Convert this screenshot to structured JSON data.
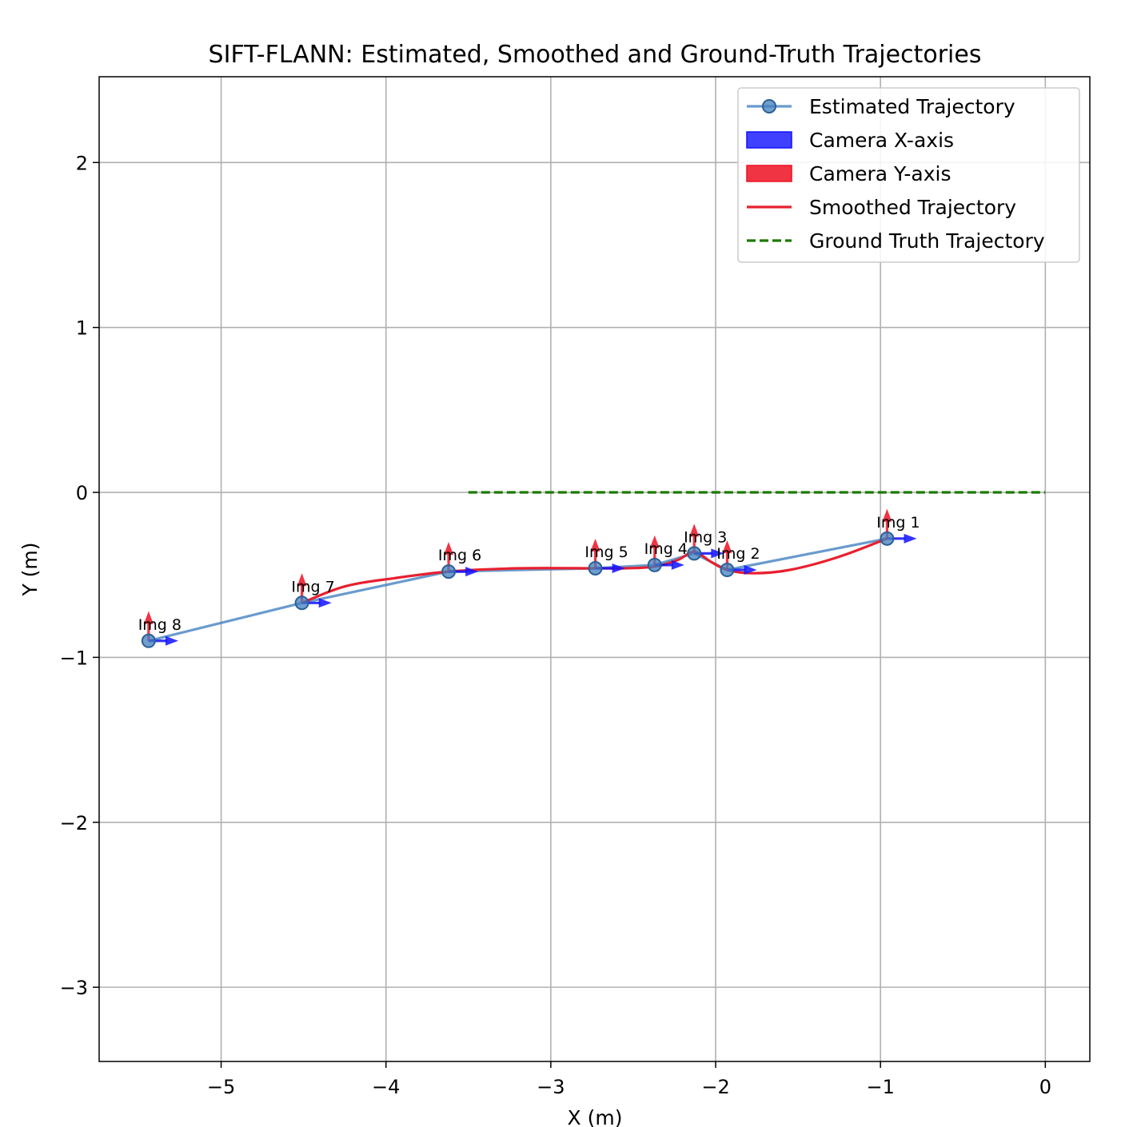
{
  "chart_data": {
    "type": "line",
    "title": "SIFT-FLANN: Estimated, Smoothed and Ground-Truth Trajectories",
    "xlabel": "X (m)",
    "ylabel": "Y (m)",
    "xlim": [
      -5.74,
      0.27
    ],
    "ylim": [
      -3.45,
      2.52
    ],
    "grid": true,
    "xticks": [
      -5,
      -4,
      -3,
      -2,
      -1,
      0
    ],
    "xtick_labels": [
      "−5",
      "−4",
      "−3",
      "−2",
      "−1",
      "0"
    ],
    "yticks": [
      -3,
      -2,
      -1,
      0,
      1,
      2
    ],
    "ytick_labels": [
      "−3",
      "−2",
      "−1",
      "0",
      "1",
      "2"
    ],
    "legend_position": "upper right",
    "legend": [
      {
        "key": "estimated",
        "label": "Estimated Trajectory"
      },
      {
        "key": "cam_x",
        "label": "Camera X-axis"
      },
      {
        "key": "cam_y",
        "label": "Camera Y-axis"
      },
      {
        "key": "smoothed",
        "label": "Smoothed Trajectory"
      },
      {
        "key": "ground_truth",
        "label": "Ground Truth Trajectory"
      }
    ],
    "colors": {
      "estimated": "#3f7fbf",
      "cam_x": "#1010ff",
      "cam_y": "#ee1122",
      "smoothed": "#e8202f",
      "ground_truth": "#1a7a00",
      "grid": "#b0b0b0"
    },
    "series": [
      {
        "key": "estimated",
        "name": "Estimated Trajectory",
        "points": [
          {
            "x": -0.96,
            "y": -0.28,
            "label": "Img 1"
          },
          {
            "x": -1.93,
            "y": -0.47,
            "label": "Img 2"
          },
          {
            "x": -2.13,
            "y": -0.37,
            "label": "Img 3"
          },
          {
            "x": -2.37,
            "y": -0.44,
            "label": "Img 4"
          },
          {
            "x": -2.73,
            "y": -0.46,
            "label": "Img 5"
          },
          {
            "x": -3.62,
            "y": -0.48,
            "label": "Img 6"
          },
          {
            "x": -4.51,
            "y": -0.67,
            "label": "Img 7"
          },
          {
            "x": -5.44,
            "y": -0.9,
            "label": "Img 8"
          }
        ]
      },
      {
        "key": "smoothed",
        "name": "Smoothed Trajectory",
        "points": [
          {
            "x": -0.96,
            "y": -0.28
          },
          {
            "x": -1.25,
            "y": -0.39
          },
          {
            "x": -1.55,
            "y": -0.47
          },
          {
            "x": -1.78,
            "y": -0.49
          },
          {
            "x": -1.93,
            "y": -0.47
          },
          {
            "x": -2.03,
            "y": -0.42
          },
          {
            "x": -2.13,
            "y": -0.36
          },
          {
            "x": -2.23,
            "y": -0.41
          },
          {
            "x": -2.37,
            "y": -0.45
          },
          {
            "x": -2.55,
            "y": -0.46
          },
          {
            "x": -2.73,
            "y": -0.46
          },
          {
            "x": -3.2,
            "y": -0.46
          },
          {
            "x": -3.62,
            "y": -0.48
          },
          {
            "x": -3.95,
            "y": -0.52
          },
          {
            "x": -4.25,
            "y": -0.57
          },
          {
            "x": -4.51,
            "y": -0.67
          }
        ]
      },
      {
        "key": "ground_truth",
        "name": "Ground Truth Trajectory",
        "points": [
          {
            "x": -3.5,
            "y": 0.0
          },
          {
            "x": 0.0,
            "y": 0.0
          }
        ]
      }
    ],
    "camera_axes": {
      "x_axis_length": 0.18,
      "y_axis_length": 0.18
    }
  }
}
